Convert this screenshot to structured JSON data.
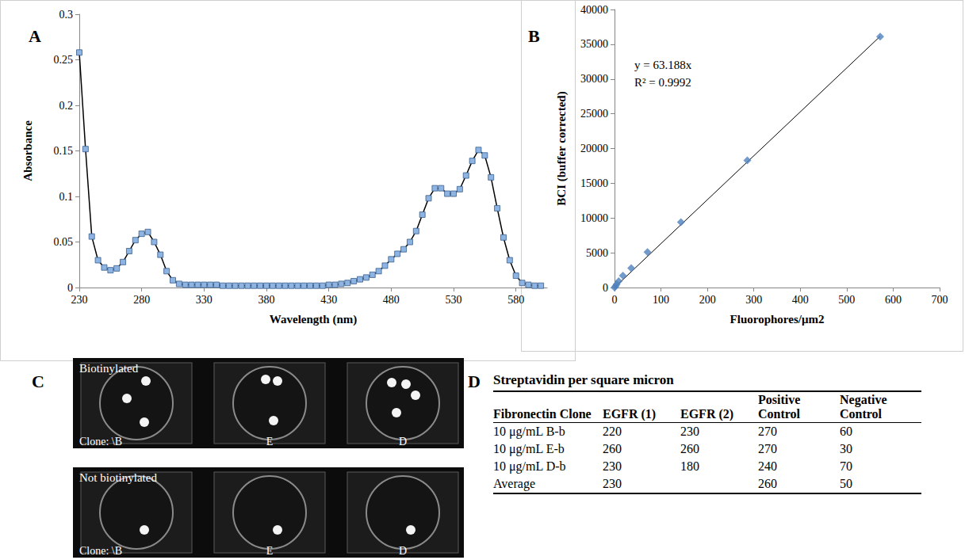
{
  "chart_data": [
    {
      "panel_label": "A",
      "type": "line",
      "x_label": "Wavelength (nm)",
      "y_label": "Absorbance",
      "x": [
        230,
        235,
        240,
        245,
        250,
        255,
        260,
        265,
        270,
        275,
        280,
        285,
        290,
        295,
        300,
        305,
        310,
        315,
        320,
        325,
        330,
        335,
        340,
        345,
        350,
        355,
        360,
        365,
        370,
        375,
        380,
        385,
        390,
        395,
        400,
        405,
        410,
        415,
        420,
        425,
        430,
        435,
        440,
        445,
        450,
        455,
        460,
        465,
        470,
        475,
        480,
        485,
        490,
        495,
        500,
        505,
        510,
        515,
        520,
        525,
        530,
        535,
        540,
        545,
        550,
        555,
        560,
        565,
        570,
        575,
        580,
        585,
        590,
        595,
        600
      ],
      "values": [
        0.258,
        0.152,
        0.056,
        0.03,
        0.022,
        0.019,
        0.021,
        0.028,
        0.04,
        0.052,
        0.059,
        0.061,
        0.05,
        0.036,
        0.018,
        0.008,
        0.004,
        0.003,
        0.003,
        0.003,
        0.003,
        0.003,
        0.003,
        0.002,
        0.002,
        0.002,
        0.002,
        0.002,
        0.002,
        0.002,
        0.002,
        0.002,
        0.002,
        0.002,
        0.002,
        0.002,
        0.002,
        0.002,
        0.002,
        0.002,
        0.003,
        0.003,
        0.004,
        0.005,
        0.007,
        0.009,
        0.011,
        0.014,
        0.018,
        0.024,
        0.031,
        0.037,
        0.042,
        0.05,
        0.062,
        0.08,
        0.098,
        0.109,
        0.109,
        0.103,
        0.103,
        0.108,
        0.123,
        0.139,
        0.151,
        0.145,
        0.121,
        0.087,
        0.055,
        0.03,
        0.013,
        0.005,
        0.003,
        0.002,
        0.002
      ],
      "color": "#8db4e2",
      "marker": "square",
      "line_style": "solid",
      "xlim": [
        230,
        605
      ],
      "xticks": [
        230,
        280,
        330,
        380,
        430,
        480,
        530,
        580
      ],
      "ylim": [
        0,
        0.3
      ],
      "yticks": [
        0,
        0.05,
        0.1,
        0.15,
        0.2,
        0.25,
        0.3
      ],
      "grid": false
    },
    {
      "panel_label": "B",
      "type": "scatter",
      "x_label": "Fluorophores/μm2",
      "y_label": "BCI (buffer corrected)",
      "x": [
        0,
        2.2,
        4.5,
        9,
        18,
        36,
        71,
        143,
        286,
        572
      ],
      "values": [
        0,
        200,
        450,
        900,
        1700,
        2800,
        5100,
        9400,
        18300,
        36100
      ],
      "color": "#4f81bd",
      "marker": "diamond",
      "xlim": [
        0,
        700
      ],
      "xticks": [
        0,
        100,
        200,
        300,
        400,
        500,
        600,
        700
      ],
      "ylim": [
        0,
        40000
      ],
      "yticks": [
        0,
        5000,
        10000,
        15000,
        20000,
        25000,
        30000,
        35000,
        40000
      ],
      "grid": false,
      "annotations": [
        "y = 63.188x",
        "R² = 0.9992"
      ],
      "trendline": {
        "slope": 63.188,
        "x": [
          0,
          572
        ]
      }
    }
  ],
  "images": {
    "panel_label": "C",
    "rows": [
      {
        "label": "Biotinylated",
        "captions": [
          "Clone:  \\B",
          "E",
          "D"
        ]
      },
      {
        "label": "Not biotinylated",
        "captions": [
          "Clone:  \\B",
          "E",
          "D"
        ]
      }
    ]
  },
  "table": {
    "panel_label": "D",
    "title": "Streptavidin per square micron",
    "header": [
      "Fibronectin Clone",
      "EGFR (1)",
      "EGFR (2)",
      "Positive Control",
      "Negative Control"
    ],
    "rows": [
      [
        "10 μg/mL B-b",
        220,
        230,
        270,
        60
      ],
      [
        "10 μg/mL E-b",
        260,
        260,
        270,
        30
      ],
      [
        "10 μg/mL D-b",
        230,
        180,
        240,
        70
      ],
      [
        "Average",
        230,
        null,
        260,
        50
      ]
    ]
  }
}
